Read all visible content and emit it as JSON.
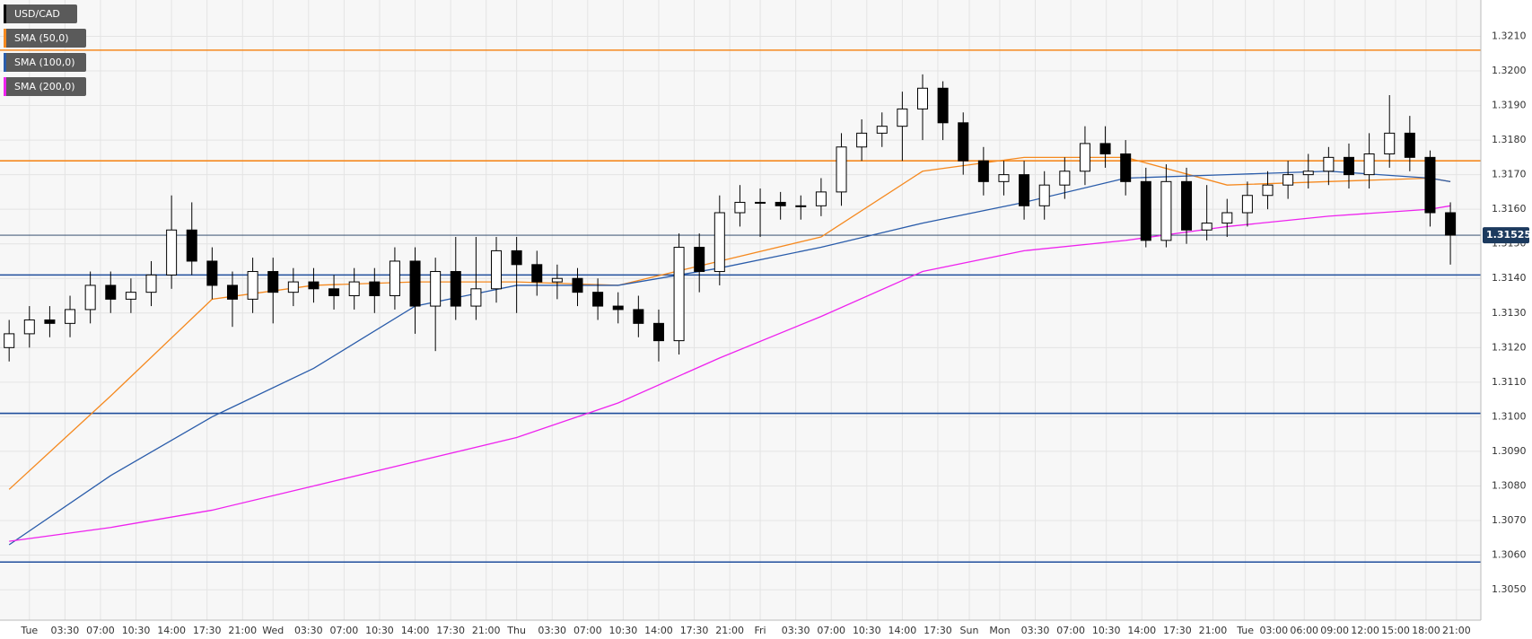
{
  "chart_data": {
    "type": "candlestick",
    "xlim": [
      -2.9,
      143
    ],
    "ylim": [
      1.30412,
      1.32205
    ],
    "grid": true,
    "xticks": [
      {
        "value": 0,
        "label": "Tue"
      },
      {
        "value": 3.5,
        "label": "03:30"
      },
      {
        "value": 7,
        "label": "07:00"
      },
      {
        "value": 10.5,
        "label": "10:30"
      },
      {
        "value": 14,
        "label": "14:00"
      },
      {
        "value": 17.5,
        "label": "17:30"
      },
      {
        "value": 21,
        "label": "21:00"
      },
      {
        "value": 24,
        "label": "Wed"
      },
      {
        "value": 27.5,
        "label": "03:30"
      },
      {
        "value": 31,
        "label": "07:00"
      },
      {
        "value": 34.5,
        "label": "10:30"
      },
      {
        "value": 38,
        "label": "14:00"
      },
      {
        "value": 41.5,
        "label": "17:30"
      },
      {
        "value": 45,
        "label": "21:00"
      },
      {
        "value": 48,
        "label": "Thu"
      },
      {
        "value": 51.5,
        "label": "03:30"
      },
      {
        "value": 55,
        "label": "07:00"
      },
      {
        "value": 58.5,
        "label": "10:30"
      },
      {
        "value": 62,
        "label": "14:00"
      },
      {
        "value": 65.5,
        "label": "17:30"
      },
      {
        "value": 69,
        "label": "21:00"
      },
      {
        "value": 72,
        "label": "Fri"
      },
      {
        "value": 75.5,
        "label": "03:30"
      },
      {
        "value": 79,
        "label": "07:00"
      },
      {
        "value": 82.5,
        "label": "10:30"
      },
      {
        "value": 86,
        "label": "14:00"
      },
      {
        "value": 89.5,
        "label": "17:30"
      },
      {
        "value": 92.6,
        "label": "Sun"
      },
      {
        "value": 95.6,
        "label": "Mon"
      },
      {
        "value": 99.1,
        "label": "03:30"
      },
      {
        "value": 102.6,
        "label": "07:00"
      },
      {
        "value": 106.1,
        "label": "10:30"
      },
      {
        "value": 109.6,
        "label": "14:00"
      },
      {
        "value": 113.1,
        "label": "17:30"
      },
      {
        "value": 116.6,
        "label": "21:00"
      },
      {
        "value": 119.8,
        "label": "Tue"
      },
      {
        "value": 122.6,
        "label": "03:00"
      },
      {
        "value": 125.6,
        "label": "06:00"
      },
      {
        "value": 128.6,
        "label": "09:00"
      },
      {
        "value": 131.6,
        "label": "12:00"
      },
      {
        "value": 134.6,
        "label": "15:00"
      },
      {
        "value": 137.6,
        "label": "18:00"
      },
      {
        "value": 140.6,
        "label": "21:00"
      }
    ],
    "yticks": [
      {
        "value": 1.305,
        "label": "1.3050"
      },
      {
        "value": 1.306,
        "label": "1.3060"
      },
      {
        "value": 1.307,
        "label": "1.3070"
      },
      {
        "value": 1.308,
        "label": "1.3080"
      },
      {
        "value": 1.309,
        "label": "1.3090"
      },
      {
        "value": 1.31,
        "label": "1.3100"
      },
      {
        "value": 1.311,
        "label": "1.3110"
      },
      {
        "value": 1.312,
        "label": "1.3120"
      },
      {
        "value": 1.313,
        "label": "1.3130"
      },
      {
        "value": 1.314,
        "label": "1.3140"
      },
      {
        "value": 1.315,
        "label": "1.3150"
      },
      {
        "value": 1.316,
        "label": "1.3160"
      },
      {
        "value": 1.317,
        "label": "1.3170"
      },
      {
        "value": 1.318,
        "label": "1.3180"
      },
      {
        "value": 1.319,
        "label": "1.3190"
      },
      {
        "value": 1.32,
        "label": "1.3200"
      },
      {
        "value": 1.321,
        "label": "1.3210"
      }
    ],
    "last_price": 1.31525,
    "levels": [
      {
        "value": 1.3206,
        "color": "#f5891f"
      },
      {
        "value": 1.3174,
        "color": "#f5891f"
      },
      {
        "value": 1.3141,
        "color": "#1f4e9c"
      },
      {
        "value": 1.3101,
        "color": "#1f4e9c"
      },
      {
        "value": 1.3058,
        "color": "#1f4e9c"
      }
    ],
    "candles": {
      "name": "USD/CAD",
      "color": "#000000",
      "x": [
        -2,
        0,
        2,
        4,
        6,
        8,
        10,
        12,
        14,
        16,
        18,
        20,
        22,
        24,
        26,
        28,
        30,
        32,
        34,
        36,
        38,
        40,
        42,
        44,
        46,
        48,
        50,
        52,
        54,
        56,
        58,
        60,
        62,
        64,
        66,
        68,
        70,
        72,
        74,
        76,
        78,
        80,
        82,
        84,
        86,
        88,
        90,
        92,
        94,
        96,
        98,
        100,
        102,
        104,
        106,
        108,
        110,
        112,
        114,
        116,
        118,
        120,
        122,
        124,
        126,
        128,
        130,
        132,
        134,
        136,
        138,
        140
      ],
      "open": [
        1.312,
        1.3124,
        1.3128,
        1.3127,
        1.3131,
        1.3138,
        1.3134,
        1.3136,
        1.3141,
        1.3154,
        1.3145,
        1.3138,
        1.3134,
        1.3142,
        1.3136,
        1.3139,
        1.3137,
        1.3135,
        1.3139,
        1.3135,
        1.3145,
        1.3132,
        1.3142,
        1.3132,
        1.3137,
        1.3148,
        1.3144,
        1.3139,
        1.314,
        1.3136,
        1.3132,
        1.3131,
        1.3127,
        1.3122,
        1.3149,
        1.3142,
        1.3159,
        1.3162,
        1.3162,
        1.3161,
        1.3161,
        1.3165,
        1.3178,
        1.3182,
        1.3184,
        1.3189,
        1.3195,
        1.3185,
        1.3174,
        1.3168,
        1.317,
        1.3161,
        1.3167,
        1.3171,
        1.3179,
        1.3176,
        1.3168,
        1.3151,
        1.3168,
        1.3154,
        1.3156,
        1.3159,
        1.3164,
        1.3167,
        1.317,
        1.3171,
        1.3175,
        1.317,
        1.3176,
        1.3182,
        1.3175,
        1.3159
      ],
      "high": [
        1.3128,
        1.3132,
        1.3132,
        1.3135,
        1.3142,
        1.3142,
        1.314,
        1.3145,
        1.3164,
        1.3162,
        1.3149,
        1.3142,
        1.3146,
        1.3146,
        1.3143,
        1.3143,
        1.3141,
        1.3143,
        1.3143,
        1.3149,
        1.3149,
        1.3146,
        1.3152,
        1.3152,
        1.3152,
        1.3152,
        1.3148,
        1.3144,
        1.3143,
        1.314,
        1.3136,
        1.3135,
        1.3131,
        1.3153,
        1.3153,
        1.3164,
        1.3167,
        1.3166,
        1.3165,
        1.3164,
        1.3169,
        1.3182,
        1.3186,
        1.3188,
        1.3194,
        1.3199,
        1.3197,
        1.3188,
        1.3178,
        1.3174,
        1.3174,
        1.3171,
        1.3175,
        1.3184,
        1.3184,
        1.318,
        1.3172,
        1.3173,
        1.3172,
        1.3167,
        1.3163,
        1.3168,
        1.3171,
        1.3174,
        1.3176,
        1.3178,
        1.3179,
        1.3182,
        1.3193,
        1.3187,
        1.3177,
        1.3162
      ],
      "low": [
        1.3116,
        1.312,
        1.3123,
        1.3123,
        1.3127,
        1.313,
        1.313,
        1.3132,
        1.3137,
        1.3141,
        1.3134,
        1.3126,
        1.313,
        1.3127,
        1.3132,
        1.3133,
        1.3131,
        1.3131,
        1.313,
        1.3131,
        1.3124,
        1.3119,
        1.3128,
        1.3128,
        1.3133,
        1.313,
        1.3135,
        1.3134,
        1.3132,
        1.3128,
        1.3127,
        1.3123,
        1.3116,
        1.3118,
        1.3136,
        1.3138,
        1.3155,
        1.3152,
        1.3157,
        1.3157,
        1.3158,
        1.3161,
        1.3174,
        1.3178,
        1.3174,
        1.318,
        1.318,
        1.317,
        1.3164,
        1.3164,
        1.3157,
        1.3157,
        1.3163,
        1.3167,
        1.3172,
        1.3164,
        1.3149,
        1.3149,
        1.315,
        1.3151,
        1.3152,
        1.3155,
        1.316,
        1.3163,
        1.3166,
        1.3167,
        1.3166,
        1.3166,
        1.3172,
        1.3171,
        1.3155,
        1.3144
      ],
      "close": [
        1.3124,
        1.3128,
        1.3127,
        1.3131,
        1.3138,
        1.3134,
        1.3136,
        1.3141,
        1.3154,
        1.3145,
        1.3138,
        1.3134,
        1.3142,
        1.3136,
        1.3139,
        1.3137,
        1.3135,
        1.3139,
        1.3135,
        1.3145,
        1.3132,
        1.3142,
        1.3132,
        1.3137,
        1.3148,
        1.3144,
        1.3139,
        1.314,
        1.3136,
        1.3132,
        1.3131,
        1.3127,
        1.3122,
        1.3149,
        1.3142,
        1.3159,
        1.3162,
        1.3162,
        1.3161,
        1.3161,
        1.3165,
        1.3178,
        1.3182,
        1.3184,
        1.3189,
        1.3195,
        1.3185,
        1.3174,
        1.3168,
        1.317,
        1.3161,
        1.3167,
        1.3171,
        1.3179,
        1.3176,
        1.3168,
        1.3151,
        1.3168,
        1.3154,
        1.3156,
        1.3159,
        1.3164,
        1.3167,
        1.317,
        1.3171,
        1.3175,
        1.317,
        1.3176,
        1.3182,
        1.3175,
        1.3159,
        1.31525
      ]
    },
    "series": [
      {
        "name": "SMA (50,0)",
        "color": "#f5891f",
        "x": [
          -2,
          8,
          18,
          28,
          38,
          48,
          58,
          68,
          78,
          88,
          98,
          108,
          118,
          128,
          138,
          140
        ],
        "values": [
          1.3079,
          1.3106,
          1.3134,
          1.3138,
          1.3139,
          1.3139,
          1.3138,
          1.3145,
          1.3152,
          1.3171,
          1.3175,
          1.3175,
          1.3167,
          1.3168,
          1.3169,
          1.3168
        ]
      },
      {
        "name": "SMA (100,0)",
        "color": "#2a5caa",
        "x": [
          -2,
          8,
          18,
          28,
          38,
          48,
          58,
          68,
          78,
          88,
          98,
          108,
          118,
          128,
          138,
          140
        ],
        "values": [
          1.3063,
          1.3083,
          1.31,
          1.3114,
          1.3132,
          1.3138,
          1.3138,
          1.3143,
          1.3149,
          1.3156,
          1.3162,
          1.3169,
          1.317,
          1.3171,
          1.3169,
          1.3168
        ]
      },
      {
        "name": "SMA (200,0)",
        "color": "#ee22ee",
        "x": [
          -2,
          8,
          18,
          28,
          38,
          48,
          58,
          68,
          78,
          88,
          98,
          108,
          118,
          128,
          138,
          140
        ],
        "values": [
          1.3064,
          1.3068,
          1.3073,
          1.308,
          1.3087,
          1.3094,
          1.3104,
          1.3117,
          1.3129,
          1.3142,
          1.3148,
          1.3151,
          1.3155,
          1.3158,
          1.316,
          1.3161
        ]
      }
    ]
  }
}
